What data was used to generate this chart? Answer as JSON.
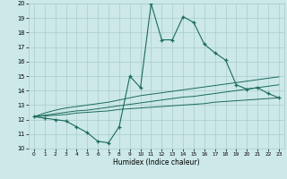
{
  "title": "",
  "xlabel": "Humidex (Indice chaleur)",
  "xlim": [
    -0.5,
    23.5
  ],
  "ylim": [
    10,
    20
  ],
  "xticks": [
    0,
    1,
    2,
    3,
    4,
    5,
    6,
    7,
    8,
    9,
    10,
    11,
    12,
    13,
    14,
    15,
    16,
    17,
    18,
    19,
    20,
    21,
    22,
    23
  ],
  "yticks": [
    10,
    11,
    12,
    13,
    14,
    15,
    16,
    17,
    18,
    19,
    20
  ],
  "background_color": "#cce8e8",
  "line_color": "#1a6b5a",
  "grid_color": "#aacccc",
  "x": [
    0,
    1,
    2,
    3,
    4,
    5,
    6,
    7,
    8,
    9,
    10,
    11,
    12,
    13,
    14,
    15,
    16,
    17,
    18,
    19,
    20,
    21,
    22,
    23
  ],
  "y_main": [
    12.2,
    12.1,
    12.0,
    11.9,
    11.5,
    11.1,
    10.5,
    10.4,
    11.5,
    15.0,
    14.2,
    20.0,
    17.5,
    17.5,
    19.1,
    18.7,
    17.2,
    16.6,
    16.1,
    14.4,
    14.1,
    14.2,
    13.8,
    13.5
  ],
  "y_line1": [
    12.2,
    12.25,
    12.3,
    12.35,
    12.45,
    12.5,
    12.55,
    12.6,
    12.7,
    12.75,
    12.8,
    12.85,
    12.9,
    12.95,
    13.0,
    13.05,
    13.1,
    13.2,
    13.25,
    13.3,
    13.35,
    13.4,
    13.45,
    13.5
  ],
  "y_line2": [
    12.2,
    12.3,
    12.4,
    12.5,
    12.6,
    12.65,
    12.75,
    12.85,
    12.95,
    13.05,
    13.15,
    13.25,
    13.35,
    13.45,
    13.55,
    13.6,
    13.7,
    13.8,
    13.9,
    14.0,
    14.1,
    14.2,
    14.3,
    14.4
  ],
  "y_line3": [
    12.2,
    12.45,
    12.65,
    12.8,
    12.9,
    13.0,
    13.1,
    13.2,
    13.35,
    13.5,
    13.65,
    13.75,
    13.85,
    13.95,
    14.05,
    14.15,
    14.25,
    14.35,
    14.45,
    14.55,
    14.65,
    14.75,
    14.85,
    14.95
  ]
}
